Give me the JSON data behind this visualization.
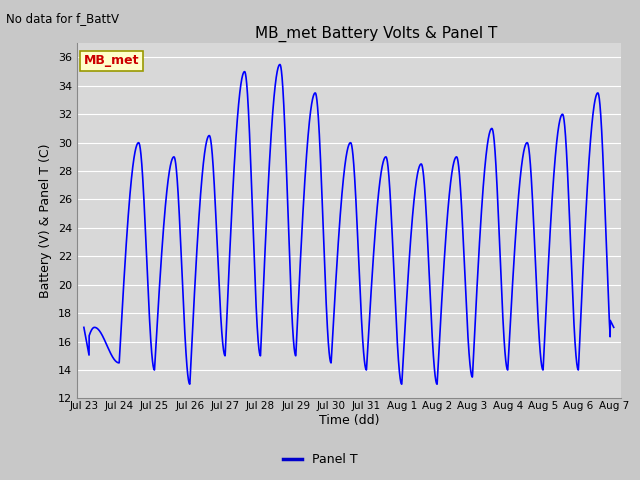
{
  "title": "MB_met Battery Volts & Panel T",
  "no_data_text": "No data for f_BattV",
  "ylabel": "Battery (V) & Panel T (C)",
  "xlabel": "Time (dd)",
  "legend_label": "Panel T",
  "legend_color": "#0000cc",
  "line_color": "#0000ff",
  "fig_bg": "#c8c8c8",
  "plot_bg": "#d8d8d8",
  "ylim": [
    12,
    37
  ],
  "yticks": [
    12,
    14,
    16,
    18,
    20,
    22,
    24,
    26,
    28,
    30,
    32,
    34,
    36
  ],
  "annotation_text": "MB_met",
  "day_peaks": [
    17.0,
    30.0,
    29.0,
    30.5,
    35.0,
    35.5,
    33.5,
    30.0,
    29.0,
    28.5,
    29.0,
    31.0,
    30.0,
    32.0,
    33.5,
    17.0
  ],
  "day_troughs": [
    15.0,
    14.5,
    14.0,
    13.0,
    15.0,
    15.0,
    15.0,
    14.5,
    14.0,
    13.0,
    13.0,
    13.5,
    14.0,
    14.0,
    14.0,
    14.0
  ],
  "peak_offsets": [
    0.3,
    0.55,
    0.55,
    0.55,
    0.55,
    0.55,
    0.55,
    0.55,
    0.55,
    0.55,
    0.55,
    0.55,
    0.55,
    0.55,
    0.55,
    0.55
  ],
  "xtick_labels": [
    "Jul 23",
    "Jul 24",
    "Jul 25",
    "Jul 26",
    "Jul 27",
    "Jul 28",
    "Jul 29",
    "Jul 30",
    "Jul 31",
    "Aug 1",
    "Aug 2",
    "Aug 3",
    "Aug 4",
    "Aug 5",
    "Aug 6",
    "Aug 7"
  ]
}
